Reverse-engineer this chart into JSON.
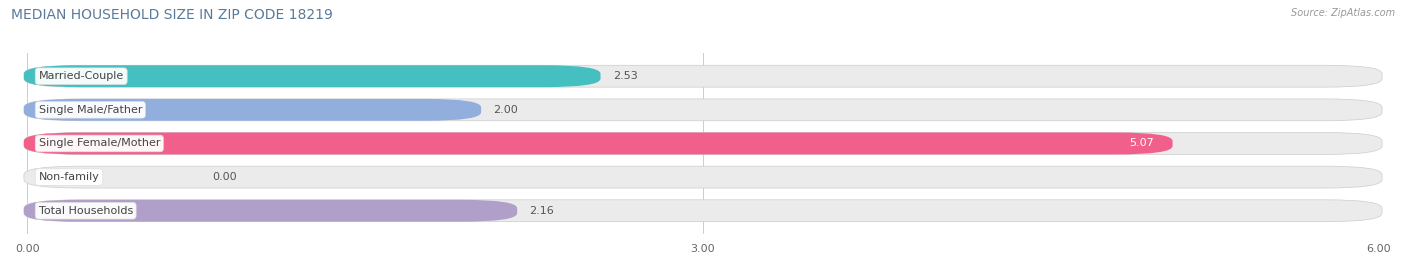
{
  "title": "MEDIAN HOUSEHOLD SIZE IN ZIP CODE 18219",
  "source": "Source: ZipAtlas.com",
  "categories": [
    "Married-Couple",
    "Single Male/Father",
    "Single Female/Mother",
    "Non-family",
    "Total Households"
  ],
  "values": [
    2.53,
    2.0,
    5.07,
    0.0,
    2.16
  ],
  "bar_colors": [
    "#45bfbf",
    "#92aedd",
    "#f0608a",
    "#f5c89a",
    "#b09fc8"
  ],
  "bg_color": "#ebebeb",
  "xlim": [
    0,
    6.0
  ],
  "xticks": [
    0.0,
    3.0,
    6.0
  ],
  "xtick_labels": [
    "0.00",
    "3.00",
    "6.00"
  ],
  "title_fontsize": 10,
  "label_fontsize": 8,
  "value_fontsize": 8,
  "bar_height": 0.62,
  "fig_width": 14.06,
  "fig_height": 2.69,
  "dpi": 100,
  "title_color": "#5a7a9a",
  "source_color": "#999999",
  "value_color_default": "#555555",
  "value_color_white": "#ffffff"
}
